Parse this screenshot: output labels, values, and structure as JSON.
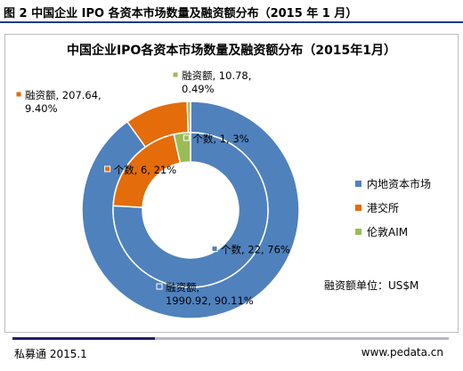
{
  "figure_caption": "图 2  中国企业 IPO 各资本市场数量及融资额分布（2015 年 1 月）",
  "footer": {
    "left": "私募通 2015.1",
    "right": "www.pedata.cn"
  },
  "unit_note": "融资额单位：US$M",
  "colors": {
    "series": [
      "#4f81bd",
      "#e46c0a",
      "#9bbb59"
    ],
    "rule_dark": "#1f1f6b",
    "rule_light": "#b7b7c8"
  },
  "chart_data": {
    "type": "donut",
    "title": "中国企业IPO各资本市场数量及融资额分布（2015年1月）",
    "categories": [
      "内地资本市场",
      "港交所",
      "伦敦AIM"
    ],
    "legend_position": "right",
    "series": [
      {
        "ring": "inner",
        "values": [
          22,
          6,
          1
        ],
        "labels": [
          "个数, 22, 76%",
          "个数, 6, 21%",
          "个数, 1, 3%"
        ]
      },
      {
        "ring": "outer",
        "values": [
          1990.92,
          207.64,
          10.78
        ],
        "labels": [
          "融资额,\n1990.92, 90.11%",
          "融资额, 207.64,\n9.40%",
          "融资额, 10.78,\n0.49%"
        ]
      }
    ]
  }
}
